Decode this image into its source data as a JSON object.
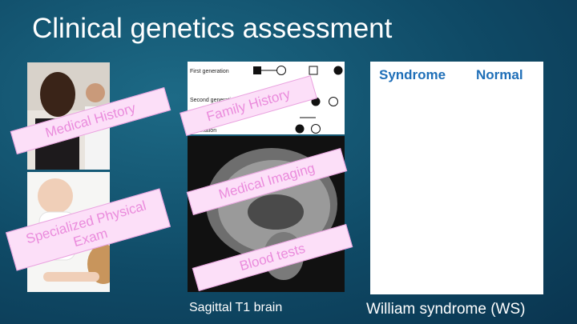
{
  "title": "Clinical genetics assessment",
  "labels": [
    "Medical History",
    "Family History",
    "Specialized Physical Exam",
    "Medical Imaging",
    "Blood tests"
  ],
  "pedigree": [
    "First generation",
    "Second generation",
    "generation"
  ],
  "captions": [
    "Sagittal T1 brain",
    "William syndrome (WS)"
  ],
  "table": {
    "headers": [
      "Syndrome",
      "Normal"
    ]
  }
}
